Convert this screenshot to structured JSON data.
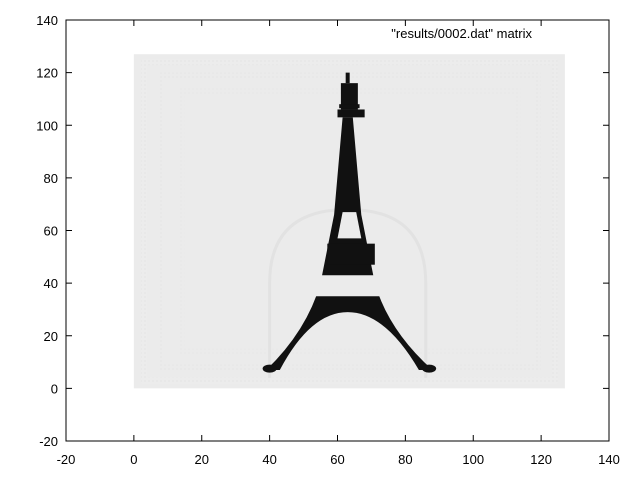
{
  "chart_data": {
    "type": "heatmap",
    "title": "",
    "xlabel": "",
    "ylabel": "",
    "xlim": [
      -20,
      140
    ],
    "ylim": [
      -20,
      140
    ],
    "x_ticks": [
      -20,
      0,
      20,
      40,
      60,
      80,
      100,
      120,
      140
    ],
    "y_ticks": [
      -20,
      0,
      20,
      40,
      60,
      80,
      100,
      120,
      140
    ],
    "grid": false,
    "legend_position": "top-right",
    "series": [
      {
        "name": "\"results/0002.dat\" matrix"
      }
    ],
    "matrix_extent": {
      "x": [
        0,
        127
      ],
      "y": [
        0,
        127
      ]
    },
    "background_value_color": "#ebebeb",
    "feature_color": "#111111",
    "tower": {
      "apex": [
        63,
        120
      ],
      "top_cap": {
        "x": [
          61,
          66
        ],
        "y": [
          106,
          116
        ]
      },
      "upper_platform": {
        "x": [
          61,
          67
        ],
        "y": [
          103,
          106
        ]
      },
      "upper_window": {
        "x": [
          59.5,
          67.5
        ],
        "y": [
          57,
          67
        ]
      },
      "second_platform": {
        "x": [
          57,
          71
        ],
        "y": [
          47,
          55
        ]
      },
      "lower_window": {
        "x": [
          52,
          74
        ],
        "y": [
          35,
          43
        ]
      },
      "arch_crown_y": 29,
      "left_foot": [
        40,
        7.5
      ],
      "right_foot": [
        87,
        7.5
      ]
    }
  }
}
